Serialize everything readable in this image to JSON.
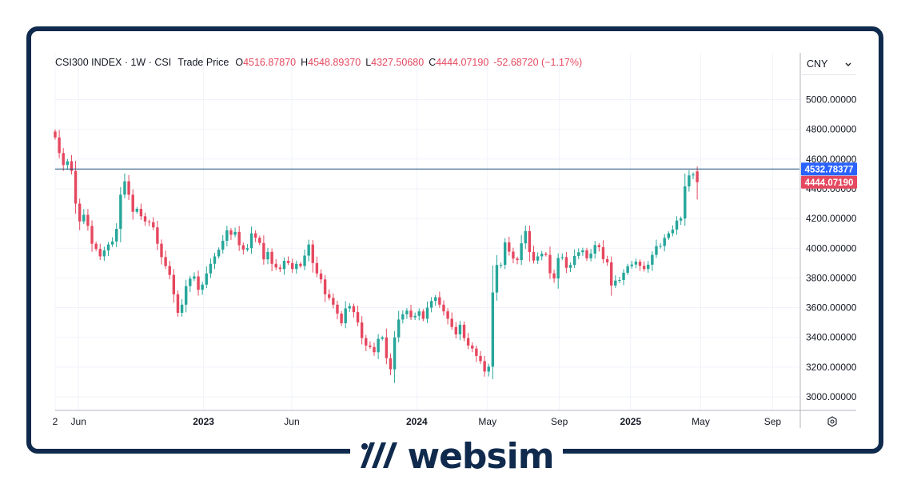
{
  "legend": {
    "symbol": "CSI300 INDEX · 1W · CSI",
    "price_type": "Trade Price",
    "open_label": "O",
    "open": "4516.87870",
    "high_label": "H",
    "high": "4548.89370",
    "low_label": "L",
    "low": "4327.50680",
    "close_label": "C",
    "close": "4444.07190",
    "change": "-52.68720 (−1.17%)"
  },
  "currency": {
    "label": "CNY",
    "chevron": "chevron-down-icon"
  },
  "settings_icon": "gear-icon",
  "brand": {
    "name": "websim",
    "logo": "websim-logo-icon"
  },
  "colors": {
    "up": "#26a69a",
    "down": "#e5485f",
    "frame": "#0f2a4d",
    "hline": "#1c4f7a",
    "hline_badge": "#2962ff",
    "last_badge": "#e5485f",
    "grid": "#f0f3fa"
  },
  "chart_data": {
    "type": "candlestick",
    "title": "CSI300 INDEX · 1W · CSI",
    "ylabel": "",
    "xlabel": "",
    "ylim": [
      2920,
      5150
    ],
    "xlim": [
      "2022-04-22",
      "2025-10-17"
    ],
    "y_ticks": [
      {
        "value": 3000,
        "label": "3000.00000"
      },
      {
        "value": 3200,
        "label": "3200.00000"
      },
      {
        "value": 3400,
        "label": "3400.00000"
      },
      {
        "value": 3600,
        "label": "3600.00000"
      },
      {
        "value": 3800,
        "label": "3800.00000"
      },
      {
        "value": 4000,
        "label": "4000.00000"
      },
      {
        "value": 4200,
        "label": "4200.00000"
      },
      {
        "value": 4400,
        "label": "4400.00000"
      },
      {
        "value": 4600,
        "label": "4600.00000"
      },
      {
        "value": 4800,
        "label": "4800.00000"
      },
      {
        "value": 5000,
        "label": "5000.00000"
      }
    ],
    "x_ticks": [
      {
        "date": "2022-04-22",
        "label": "2",
        "bold": false
      },
      {
        "date": "2022-06-01",
        "label": "Jun",
        "bold": false
      },
      {
        "date": "2023-01-01",
        "label": "2023",
        "bold": true
      },
      {
        "date": "2023-06-01",
        "label": "Jun",
        "bold": false
      },
      {
        "date": "2024-01-01",
        "label": "2024",
        "bold": true
      },
      {
        "date": "2024-05-01",
        "label": "May",
        "bold": false
      },
      {
        "date": "2024-09-01",
        "label": "Sep",
        "bold": false
      },
      {
        "date": "2025-01-01",
        "label": "2025",
        "bold": true
      },
      {
        "date": "2025-05-01",
        "label": "May",
        "bold": false
      },
      {
        "date": "2025-09-01",
        "label": "Sep",
        "bold": false
      }
    ],
    "grid": true,
    "horizontal_line": {
      "value": 4532.78377,
      "label": "4532.78377"
    },
    "last_price": {
      "value": 4444.0719,
      "label": "4444.07190"
    },
    "start_date": "2022-04-22",
    "interval_days": 7,
    "close_series": [
      4745,
      4640,
      4560,
      4585,
      4520,
      4300,
      4180,
      4225,
      4150,
      4030,
      3995,
      3945,
      3985,
      4025,
      4045,
      4130,
      4360,
      4450,
      4360,
      4245,
      4265,
      4215,
      4180,
      4175,
      4140,
      4030,
      3940,
      3880,
      3820,
      3690,
      3565,
      3620,
      3745,
      3795,
      3810,
      3720,
      3755,
      3830,
      3895,
      3945,
      3990,
      4050,
      4120,
      4090,
      4110,
      4020,
      3990,
      4000,
      4100,
      4070,
      4035,
      3925,
      3975,
      3895,
      3870,
      3860,
      3915,
      3900,
      3860,
      3895,
      3880,
      3950,
      4025,
      3900,
      3830,
      3790,
      3690,
      3665,
      3620,
      3560,
      3495,
      3595,
      3610,
      3570,
      3500,
      3395,
      3345,
      3335,
      3300,
      3390,
      3400,
      3260,
      3185,
      3400,
      3520,
      3555,
      3580,
      3535,
      3545,
      3575,
      3525,
      3600,
      3645,
      3670,
      3620,
      3575,
      3525,
      3470,
      3420,
      3485,
      3395,
      3345,
      3325,
      3275,
      3240,
      3170,
      3203,
      3702,
      3887,
      3888,
      4039,
      3977,
      3930,
      3920,
      4033,
      4115,
      3974,
      3917,
      3945,
      3963,
      3955,
      3831,
      3796,
      3934,
      3940,
      3868,
      3887,
      3948,
      3973,
      3986,
      3932,
      3964,
      4021,
      4007,
      3926,
      3905,
      3749,
      3782,
      3786,
      3835,
      3879,
      3890,
      3909,
      3881,
      3860,
      3889,
      3955,
      4014,
      4015,
      4069,
      4100,
      4125,
      4186,
      4200,
      4416,
      4490,
      4497,
      4444
    ]
  }
}
